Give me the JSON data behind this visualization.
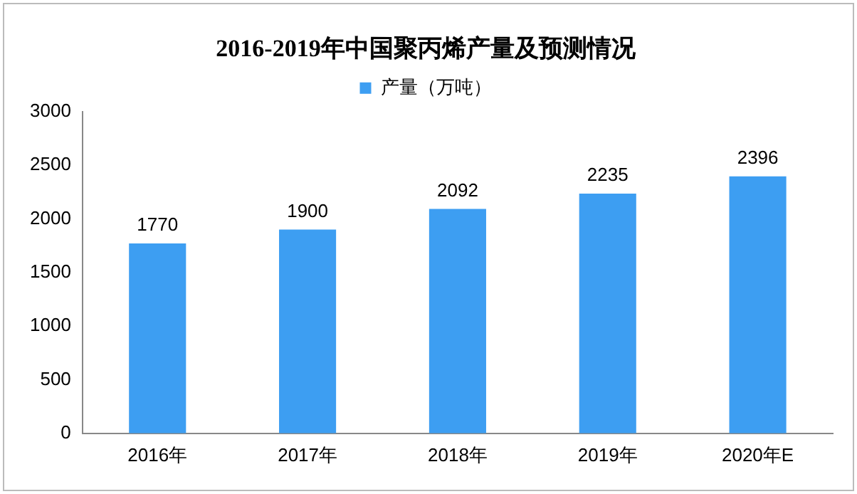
{
  "chart_data": {
    "type": "bar",
    "title": "2016-2019年中国聚丙烯产量及预测情况",
    "categories": [
      "2016年",
      "2017年",
      "2018年",
      "2019年",
      "2020年E"
    ],
    "series": [
      {
        "name": "产量（万吨）",
        "color": "#3d9ef2",
        "values": [
          1770,
          1900,
          2092,
          2235,
          2396
        ]
      }
    ],
    "ylim": [
      0,
      3000
    ],
    "yticks": [
      0,
      500,
      1000,
      1500,
      2000,
      2500,
      3000
    ],
    "grid": false,
    "legend": "top",
    "data_labels": true
  }
}
